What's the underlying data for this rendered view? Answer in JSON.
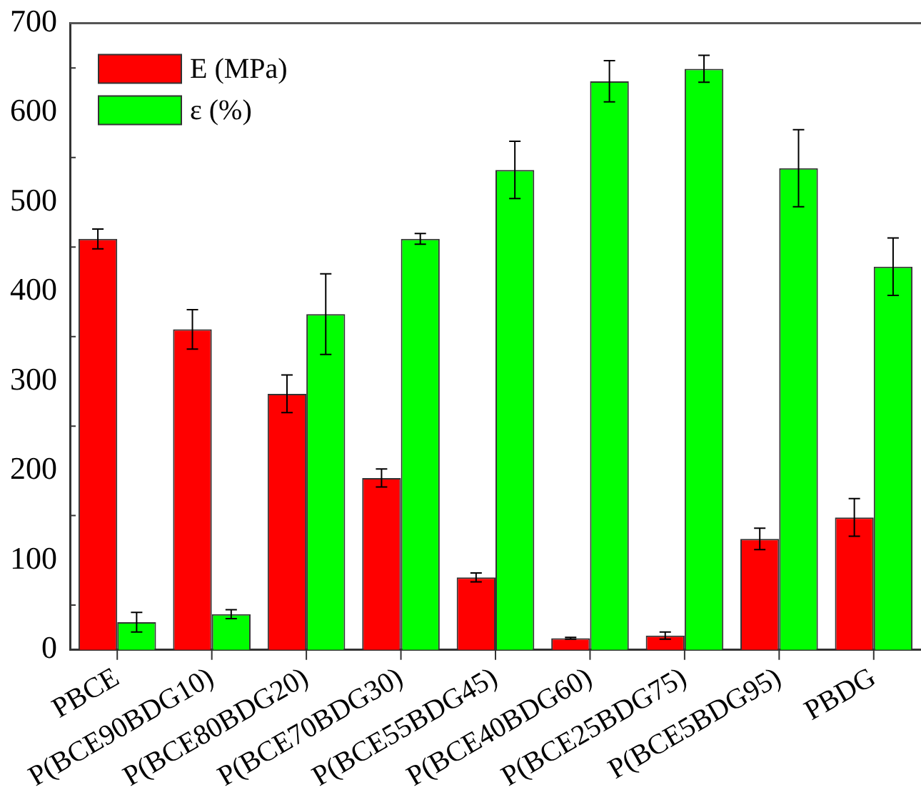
{
  "chart_data": {
    "type": "bar",
    "categories": [
      "PBCE",
      "P(BCE90BDG10)",
      "P(BCE80BDG20)",
      "P(BCE70BDG30)",
      "P(BCE55BDG45)",
      "P(BCE40BDG60)",
      "P(BCE25BDG75)",
      "P(BCE5BDG95)",
      "PBDG"
    ],
    "series": [
      {
        "name": "E (MPa)",
        "color": "#ff0000",
        "values": [
          459,
          358,
          286,
          192,
          81,
          13,
          16,
          124,
          148
        ],
        "errors": [
          11,
          22,
          21,
          10,
          5,
          1,
          4,
          12,
          21
        ]
      },
      {
        "name": "ε (%)",
        "color": "#00ff00",
        "values": [
          31,
          40,
          375,
          459,
          536,
          635,
          649,
          538,
          428
        ],
        "errors": [
          11,
          5,
          45,
          6,
          32,
          23,
          15,
          43,
          32
        ]
      }
    ],
    "ylim": [
      0,
      700
    ],
    "yticks": [
      0,
      100,
      200,
      300,
      400,
      500,
      600,
      700
    ],
    "grid": false,
    "legend": "top left"
  }
}
